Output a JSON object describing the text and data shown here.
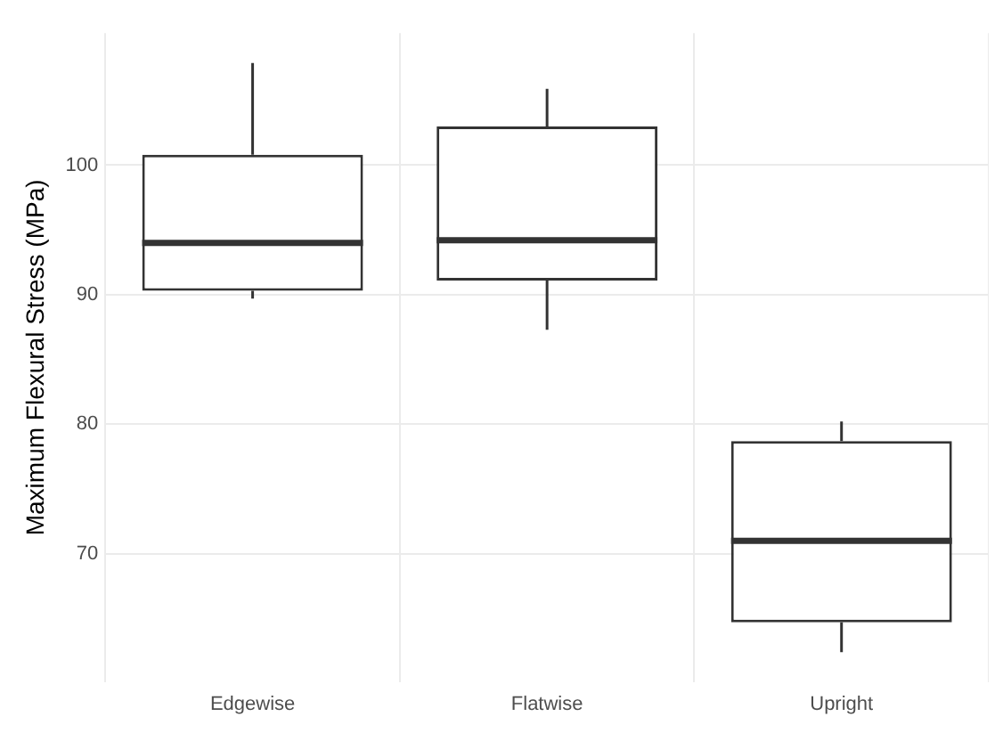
{
  "chart_data": {
    "type": "box",
    "ylabel": "Maximum Flexural Stress (MPa)",
    "categories": [
      "Edgewise",
      "Flatwise",
      "Upright"
    ],
    "boxes": [
      {
        "low": 89.7,
        "q1": 90.3,
        "median": 94.0,
        "q3": 100.8,
        "high": 107.9
      },
      {
        "low": 87.3,
        "q1": 91.1,
        "median": 94.2,
        "q3": 103.0,
        "high": 105.9
      },
      {
        "low": 62.4,
        "q1": 64.7,
        "median": 71.0,
        "q3": 78.7,
        "high": 80.2
      }
    ],
    "color": "#333333",
    "ylim": [
      60.1,
      110.2
    ],
    "yticks": [
      70,
      80,
      90,
      100
    ],
    "grid": true
  }
}
